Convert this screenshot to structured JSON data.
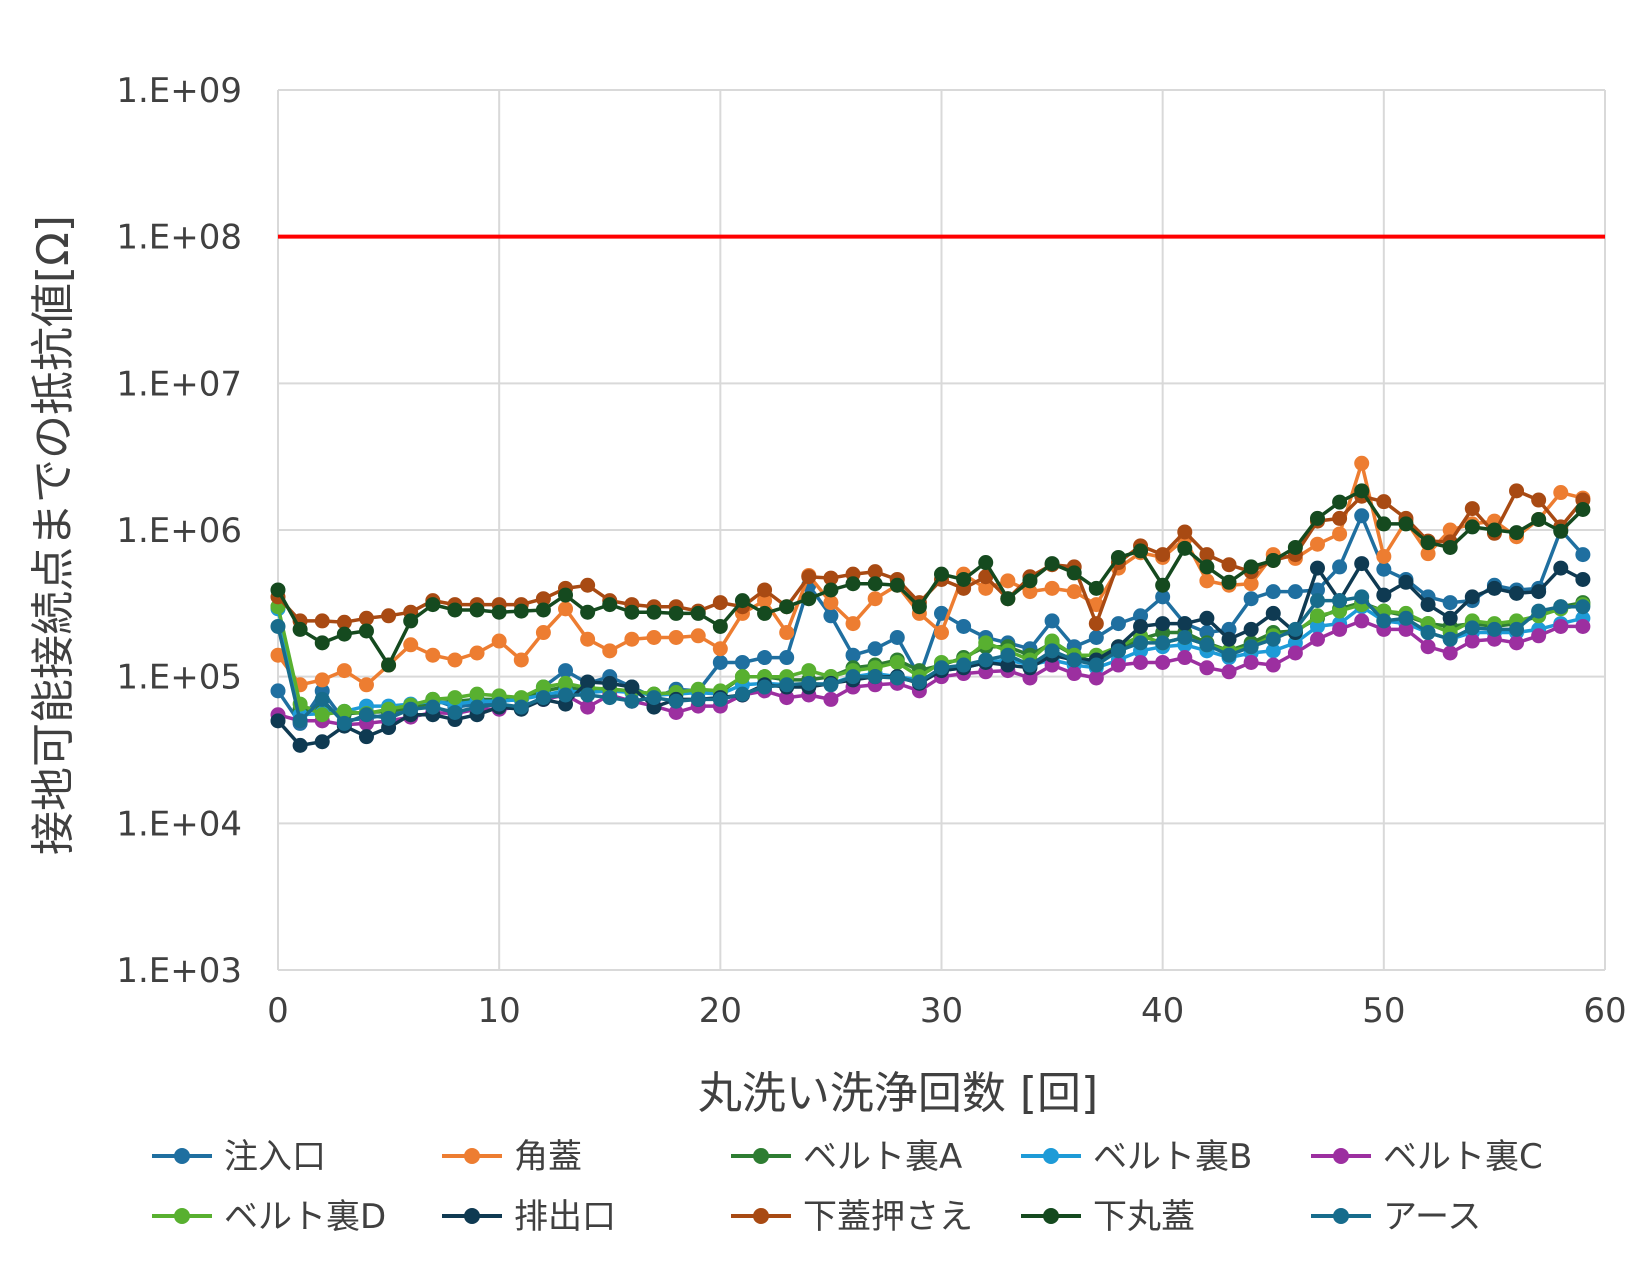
{
  "chart_data": {
    "type": "line",
    "title": "",
    "xlabel": "丸洗い洗浄回数 [回]",
    "ylabel": "接地可能接続点までの抵抗値[Ω]",
    "y_scale": "log",
    "xlim": [
      0,
      60
    ],
    "ylim": [
      1000,
      1000000000
    ],
    "x_ticks": [
      "0",
      "10",
      "20",
      "30",
      "40",
      "50",
      "60"
    ],
    "y_ticks": [
      "1.E+03",
      "1.E+04",
      "1.E+05",
      "1.E+06",
      "1.E+07",
      "1.E+08",
      "1.E+09"
    ],
    "grid": "vertical and horizontal major gridlines",
    "legend_position": "bottom",
    "threshold_line": {
      "value": 100000000,
      "color": "#ff0000"
    },
    "series": [
      {
        "name": "注入口",
        "color": "#1f6fa0",
        "values": [
          80000,
          48000,
          80000,
          50000,
          52000,
          55000,
          60000,
          70000,
          62000,
          65000,
          68000,
          70000,
          85000,
          110000,
          90000,
          100000,
          85000,
          72000,
          82000,
          80000,
          125000,
          125000,
          135000,
          135000,
          420000,
          260000,
          140000,
          155000,
          185000,
          100000,
          270000,
          220000,
          185000,
          170000,
          155000,
          240000,
          160000,
          185000,
          230000,
          260000,
          350000,
          230000,
          200000,
          210000,
          340000,
          380000,
          380000,
          390000,
          560000,
          1250000,
          540000,
          460000,
          350000,
          320000,
          330000,
          420000,
          390000,
          400000,
          1000000,
          680000
        ]
      },
      {
        "name": "角蓋",
        "color": "#ed7d31",
        "values": [
          140000,
          88000,
          95000,
          110000,
          88000,
          120000,
          165000,
          140000,
          130000,
          145000,
          175000,
          130000,
          200000,
          290000,
          180000,
          150000,
          180000,
          185000,
          185000,
          190000,
          155000,
          270000,
          330000,
          200000,
          490000,
          320000,
          230000,
          340000,
          420000,
          270000,
          200000,
          500000,
          400000,
          450000,
          380000,
          400000,
          380000,
          310000,
          550000,
          700000,
          650000,
          870000,
          450000,
          420000,
          430000,
          680000,
          640000,
          800000,
          940000,
          2850000,
          660000,
          1150000,
          690000,
          1000000,
          1100000,
          1150000,
          900000,
          1180000,
          1800000,
          1650000
        ]
      },
      {
        "name": "ベルト裏A",
        "color": "#2e7d32",
        "values": [
          300000,
          60000,
          58000,
          56000,
          57000,
          58000,
          62000,
          66000,
          68000,
          70000,
          70000,
          70000,
          80000,
          85000,
          80000,
          82000,
          80000,
          76000,
          78000,
          80000,
          78000,
          100000,
          100000,
          95000,
          95000,
          100000,
          115000,
          120000,
          130000,
          110000,
          120000,
          135000,
          160000,
          160000,
          140000,
          170000,
          140000,
          125000,
          150000,
          180000,
          200000,
          200000,
          170000,
          150000,
          170000,
          200000,
          205000,
          250000,
          290000,
          320000,
          280000,
          260000,
          230000,
          220000,
          230000,
          220000,
          230000,
          260000,
          300000,
          320000
        ]
      },
      {
        "name": "ベルト裏B",
        "color": "#1e9bd7",
        "values": [
          290000,
          55000,
          56000,
          58000,
          63000,
          63000,
          65000,
          68000,
          65000,
          68000,
          68000,
          70000,
          75000,
          80000,
          78000,
          80000,
          78000,
          75000,
          76000,
          78000,
          76000,
          88000,
          90000,
          88000,
          88000,
          90000,
          100000,
          105000,
          100000,
          95000,
          110000,
          115000,
          125000,
          130000,
          120000,
          130000,
          120000,
          115000,
          130000,
          150000,
          160000,
          165000,
          150000,
          135000,
          145000,
          150000,
          170000,
          220000,
          230000,
          300000,
          240000,
          230000,
          200000,
          180000,
          200000,
          200000,
          200000,
          210000,
          230000,
          250000
        ]
      },
      {
        "name": "ベルト裏C",
        "color": "#9c2fa0",
        "values": [
          55000,
          50000,
          50000,
          47000,
          48000,
          50000,
          53000,
          57000,
          56000,
          60000,
          60000,
          62000,
          70000,
          75000,
          62000,
          75000,
          68000,
          63000,
          57000,
          63000,
          63000,
          75000,
          80000,
          72000,
          75000,
          70000,
          85000,
          88000,
          90000,
          80000,
          100000,
          105000,
          108000,
          110000,
          98000,
          120000,
          105000,
          98000,
          120000,
          125000,
          125000,
          135000,
          115000,
          108000,
          125000,
          120000,
          145000,
          180000,
          210000,
          240000,
          210000,
          210000,
          160000,
          145000,
          175000,
          180000,
          170000,
          190000,
          220000,
          220000
        ]
      },
      {
        "name": "ベルト裏D",
        "color": "#58b030",
        "values": [
          300000,
          65000,
          55000,
          58000,
          56000,
          60000,
          64000,
          70000,
          72000,
          76000,
          74000,
          72000,
          85000,
          90000,
          84000,
          82000,
          80000,
          76000,
          78000,
          82000,
          80000,
          100000,
          100000,
          100000,
          110000,
          100000,
          110000,
          115000,
          125000,
          100000,
          125000,
          130000,
          170000,
          150000,
          130000,
          175000,
          140000,
          140000,
          160000,
          190000,
          170000,
          185000,
          165000,
          150000,
          160000,
          190000,
          200000,
          260000,
          280000,
          310000,
          280000,
          270000,
          230000,
          200000,
          240000,
          230000,
          240000,
          260000,
          290000,
          310000
        ]
      },
      {
        "name": "排出口",
        "color": "#0f3a52",
        "values": [
          50000,
          34000,
          36000,
          46000,
          39000,
          45000,
          55000,
          55000,
          51000,
          55000,
          62000,
          60000,
          70000,
          65000,
          92000,
          90000,
          85000,
          62000,
          70000,
          70000,
          72000,
          75000,
          88000,
          85000,
          85000,
          90000,
          95000,
          100000,
          100000,
          90000,
          110000,
          115000,
          125000,
          120000,
          115000,
          140000,
          130000,
          130000,
          160000,
          220000,
          230000,
          230000,
          250000,
          180000,
          210000,
          270000,
          200000,
          550000,
          330000,
          590000,
          360000,
          440000,
          310000,
          250000,
          350000,
          400000,
          370000,
          380000,
          550000,
          460000
        ]
      },
      {
        "name": "下蓋押さえ",
        "color": "#a84a13",
        "values": [
          350000,
          240000,
          240000,
          235000,
          250000,
          260000,
          275000,
          330000,
          310000,
          310000,
          310000,
          310000,
          340000,
          400000,
          420000,
          330000,
          310000,
          300000,
          300000,
          280000,
          320000,
          300000,
          390000,
          300000,
          480000,
          470000,
          500000,
          520000,
          460000,
          320000,
          460000,
          400000,
          480000,
          340000,
          480000,
          580000,
          560000,
          230000,
          600000,
          780000,
          680000,
          970000,
          680000,
          580000,
          520000,
          620000,
          680000,
          1150000,
          1200000,
          1700000,
          1560000,
          1200000,
          840000,
          830000,
          1400000,
          950000,
          1850000,
          1600000,
          1050000,
          1600000
        ]
      },
      {
        "name": "下丸蓋",
        "color": "#154a1f",
        "values": [
          390000,
          210000,
          170000,
          195000,
          205000,
          120000,
          240000,
          310000,
          285000,
          285000,
          275000,
          280000,
          285000,
          360000,
          275000,
          310000,
          275000,
          275000,
          270000,
          270000,
          220000,
          330000,
          270000,
          300000,
          340000,
          390000,
          430000,
          430000,
          420000,
          300000,
          500000,
          460000,
          600000,
          340000,
          450000,
          590000,
          510000,
          400000,
          650000,
          720000,
          420000,
          750000,
          560000,
          440000,
          560000,
          620000,
          760000,
          1200000,
          1550000,
          1850000,
          1100000,
          1100000,
          820000,
          760000,
          1050000,
          1000000,
          960000,
          1180000,
          980000,
          1380000
        ]
      },
      {
        "name": "アース",
        "color": "#176c8c",
        "values": [
          220000,
          50000,
          70000,
          48000,
          55000,
          52000,
          60000,
          62000,
          57000,
          62000,
          65000,
          62000,
          72000,
          75000,
          75000,
          72000,
          68000,
          72000,
          68000,
          70000,
          70000,
          76000,
          85000,
          88000,
          90000,
          88000,
          100000,
          100000,
          98000,
          92000,
          115000,
          120000,
          130000,
          140000,
          120000,
          150000,
          130000,
          120000,
          150000,
          170000,
          170000,
          185000,
          165000,
          140000,
          160000,
          180000,
          210000,
          330000,
          330000,
          350000,
          240000,
          250000,
          200000,
          180000,
          215000,
          210000,
          210000,
          280000,
          300000,
          300000
        ]
      }
    ]
  }
}
